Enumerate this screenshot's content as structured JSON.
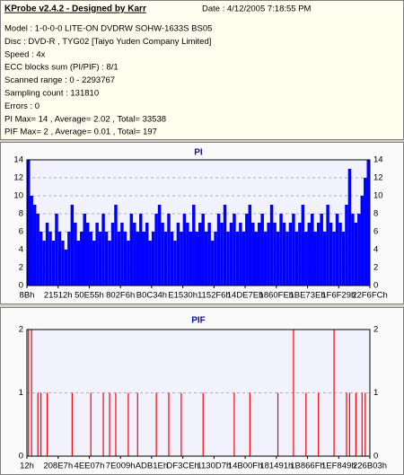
{
  "header": {
    "title": "KProbe v2.4.2 - Designed by Karr",
    "date": "Date : 4/12/2005 7:18:55 PM"
  },
  "info": [
    "Model : 1-0-0-0 LITE-ON DVDRW SOHW-1633S BS05",
    "Disc : DVD-R , TYG02 [Taiyo Yuden Company Limited]",
    "Speed : 4x",
    "ECC blocks sum (PI/PIF) : 8/1",
    "Scanned range : 0 - 2293767",
    "Sampling count : 131810",
    "Errors : 0",
    "PI Max= 14 , Average= 2.02 , Total= 33538",
    "PIF Max= 2 , Average= 0.01 , Total= 197"
  ],
  "chart_data": [
    {
      "type": "bar",
      "title": "PI",
      "color": "#0000ff",
      "grid": true,
      "xlim": [
        0,
        110
      ],
      "xticks": [
        {
          "value": 0,
          "label": "8Bh"
        },
        {
          "value": 10,
          "label": "21512h"
        },
        {
          "value": 20,
          "label": "50E55h"
        },
        {
          "value": 30,
          "label": "802F6h"
        },
        {
          "value": 40,
          "label": "B0C34h"
        },
        {
          "value": 50,
          "label": "E1530h"
        },
        {
          "value": 60,
          "label": "1152F6h"
        },
        {
          "value": 70,
          "label": "14DE7Eh"
        },
        {
          "value": 80,
          "label": "1860FEh"
        },
        {
          "value": 90,
          "label": "1BE73Eh"
        },
        {
          "value": 100,
          "label": "1F6F29h"
        },
        {
          "value": 110,
          "label": "22F6FCh"
        }
      ],
      "ylim": [
        0,
        14
      ],
      "yticks": [
        0,
        2,
        4,
        6,
        8,
        10,
        12,
        14
      ],
      "values": [
        14,
        10,
        9,
        8,
        6,
        5,
        7,
        6,
        5,
        8,
        6,
        5,
        4,
        6,
        9,
        7,
        5,
        6,
        8,
        7,
        6,
        5,
        7,
        6,
        8,
        6,
        5,
        7,
        9,
        6,
        7,
        6,
        5,
        8,
        7,
        6,
        8,
        6,
        7,
        5,
        6,
        8,
        9,
        7,
        6,
        8,
        6,
        5,
        7,
        6,
        8,
        7,
        6,
        9,
        6,
        7,
        8,
        6,
        7,
        5,
        6,
        8,
        7,
        9,
        6,
        7,
        8,
        6,
        7,
        6,
        8,
        9,
        7,
        6,
        7,
        8,
        6,
        7,
        9,
        7,
        6,
        8,
        7,
        6,
        7,
        8,
        6,
        7,
        9,
        6,
        7,
        8,
        6,
        7,
        8,
        6,
        9,
        7,
        6,
        8,
        7,
        6,
        9,
        13,
        8,
        7,
        8,
        10,
        12,
        14
      ]
    },
    {
      "type": "bar",
      "title": "PIF",
      "color": "#ff0000",
      "grid": true,
      "xlim": [
        0,
        110
      ],
      "xticks": [
        {
          "value": 0,
          "label": "12h"
        },
        {
          "value": 10,
          "label": "208E7h"
        },
        {
          "value": 20,
          "label": "4EE07h"
        },
        {
          "value": 30,
          "label": "7E009h"
        },
        {
          "value": 40,
          "label": "ADB1Eh"
        },
        {
          "value": 50,
          "label": "DF3CEh"
        },
        {
          "value": 60,
          "label": "1130D7h"
        },
        {
          "value": 70,
          "label": "14B00Fh"
        },
        {
          "value": 80,
          "label": "181491h"
        },
        {
          "value": 90,
          "label": "1B866Fh"
        },
        {
          "value": 100,
          "label": "1EF849h"
        },
        {
          "value": 110,
          "label": "226B03h"
        }
      ],
      "ylim": [
        0,
        2
      ],
      "yticks": [
        0,
        1,
        2
      ],
      "values": [
        2,
        2,
        0,
        1,
        1,
        0,
        1,
        0,
        0,
        0,
        0,
        0,
        0,
        0,
        1,
        0,
        0,
        0,
        0,
        0,
        1,
        0,
        0,
        0,
        1,
        0,
        1,
        0,
        1,
        0,
        0,
        0,
        1,
        0,
        0,
        1,
        0,
        0,
        0,
        0,
        0,
        1,
        0,
        0,
        0,
        1,
        0,
        0,
        0,
        1,
        0,
        0,
        0,
        0,
        0,
        0,
        1,
        0,
        0,
        0,
        0,
        0,
        0,
        0,
        0,
        0,
        1,
        0,
        0,
        0,
        0,
        1,
        0,
        0,
        0,
        0,
        0,
        0,
        0,
        0,
        1,
        0,
        0,
        0,
        0,
        2,
        0,
        0,
        0,
        1,
        0,
        0,
        0,
        1,
        0,
        0,
        0,
        0,
        2,
        0,
        0,
        0,
        1,
        1,
        0,
        1,
        0,
        1,
        1,
        0
      ]
    }
  ]
}
